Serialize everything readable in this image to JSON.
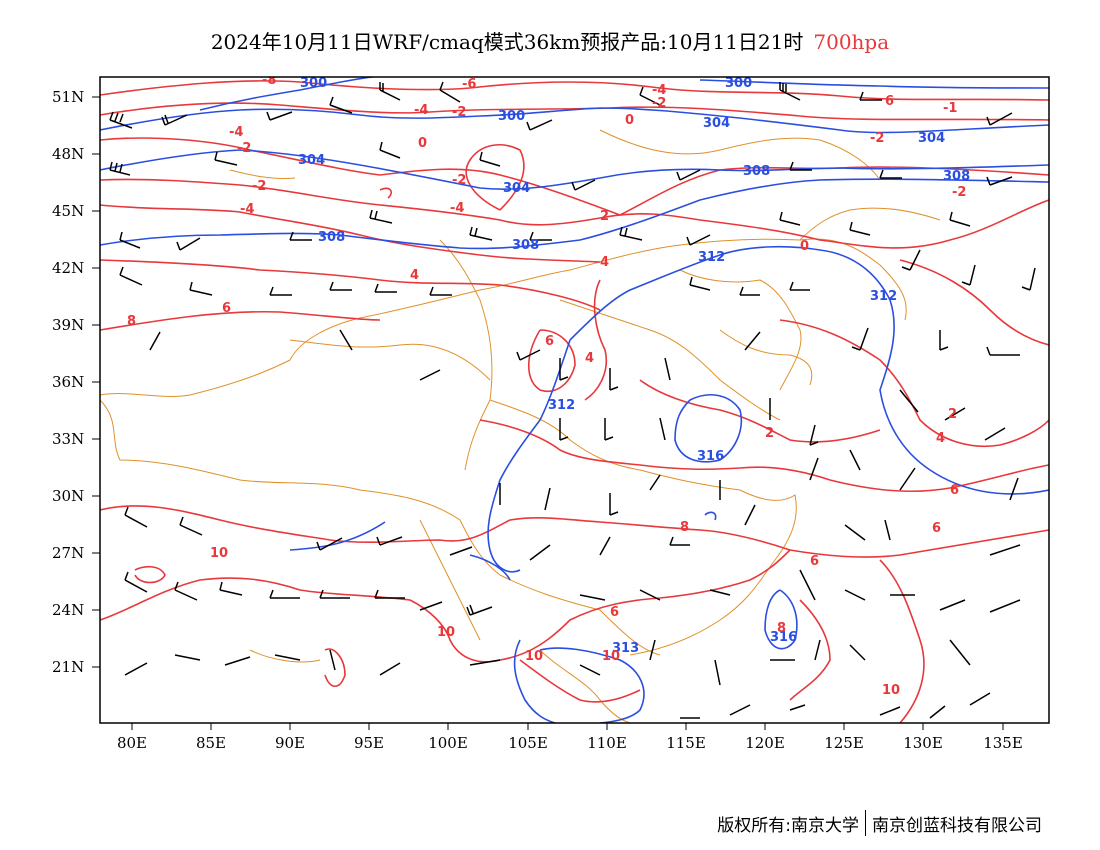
{
  "title": {
    "main": "2024年10月11日WRF/cmaq模式36km预报产品:10月11日21时",
    "level": "700hpa"
  },
  "axes": {
    "lat_labels": [
      "51N",
      "48N",
      "45N",
      "42N",
      "39N",
      "36N",
      "33N",
      "30N",
      "27N",
      "24N",
      "21N"
    ],
    "lon_labels": [
      "80E",
      "85E",
      "90E",
      "95E",
      "100E",
      "105E",
      "110E",
      "115E",
      "120E",
      "125E",
      "130E",
      "135E"
    ]
  },
  "legend_colors": {
    "geopotential": "#2a4fe0",
    "temperature": "#e8383b",
    "boundaries": "#e0902a",
    "wind": "#000000"
  },
  "height_labels": [
    "300",
    "300",
    "300",
    "304",
    "304",
    "304",
    "304",
    "308",
    "308",
    "308",
    "308",
    "312",
    "312",
    "312",
    "313",
    "316",
    "316"
  ],
  "temp_labels": [
    "-8",
    "-4",
    "-4",
    "-2",
    "-2",
    "-4",
    "-2",
    "-2",
    "0",
    "-2",
    "-2",
    "2",
    "-4",
    "-4",
    "-6",
    "-2",
    "6",
    "-1",
    "0",
    "0",
    "4",
    "2",
    "4",
    "6",
    "6",
    "8",
    "2",
    "4",
    "6",
    "4",
    "8",
    "6",
    "6",
    "10",
    "8",
    "6",
    "10",
    "10",
    "10",
    "10"
  ],
  "footer": {
    "copyright": "版权所有:南京大学",
    "company": "南京创蓝科技有限公司"
  }
}
